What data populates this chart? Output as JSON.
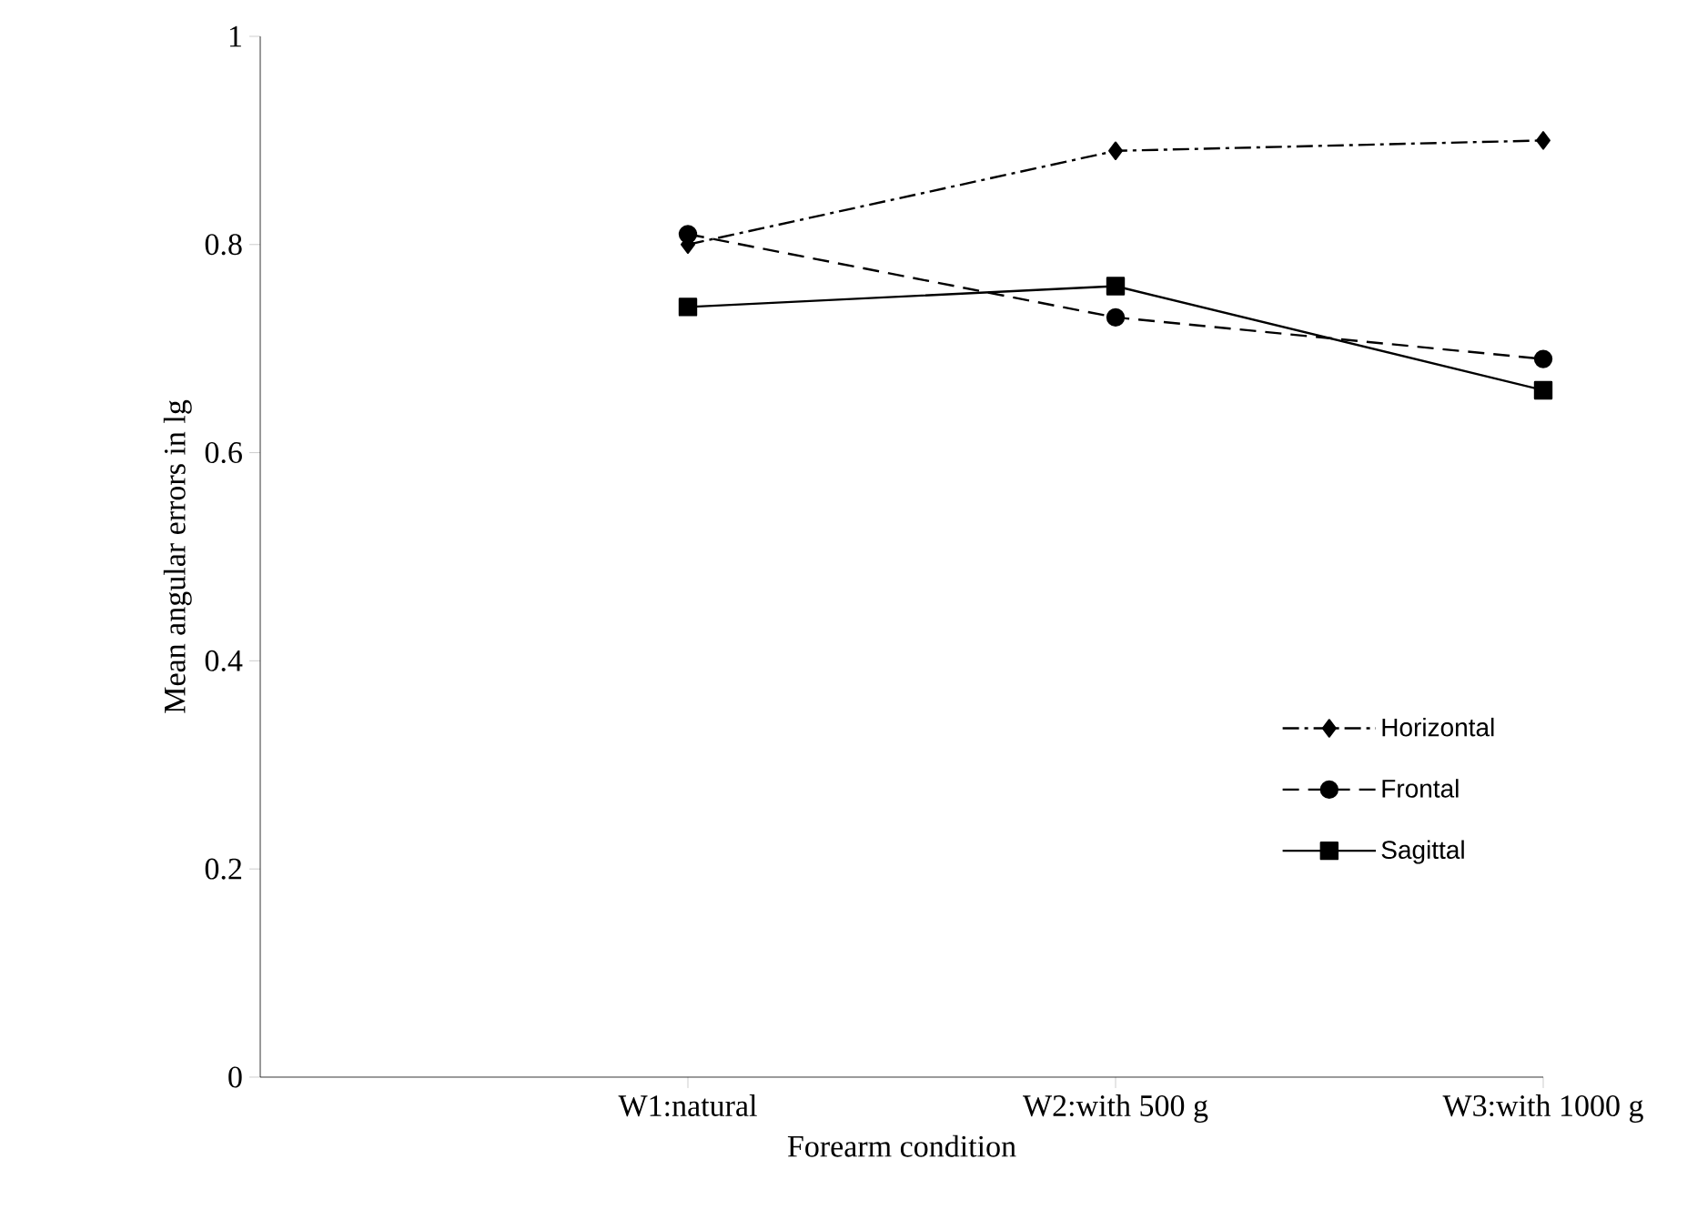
{
  "chart_data": {
    "type": "line",
    "xlabel": "Forearm condition",
    "ylabel": "Mean angular errors in lg",
    "categories": [
      null,
      "W1:natural",
      "W2:with 500 g",
      "W3:with 1000 g"
    ],
    "series": [
      {
        "name": "Horizontal",
        "color": "#000000",
        "values": [
          null,
          0.8,
          0.89,
          0.9
        ],
        "marker": "diamond",
        "line_style": "dashdot"
      },
      {
        "name": "Frontal",
        "color": "#000000",
        "values": [
          null,
          0.81,
          0.73,
          0.69
        ],
        "marker": "circle",
        "line_style": "dashed"
      },
      {
        "name": "Sagittal",
        "color": "#000000",
        "values": [
          null,
          0.74,
          0.76,
          0.66
        ],
        "marker": "square",
        "line_style": "solid"
      }
    ],
    "ylim": [
      0,
      1
    ],
    "yticks": [
      0,
      0.2,
      0.4,
      0.6,
      0.8,
      {
        "value": 1,
        "label": "1"
      }
    ],
    "grid": false,
    "legend": "bottom right"
  }
}
